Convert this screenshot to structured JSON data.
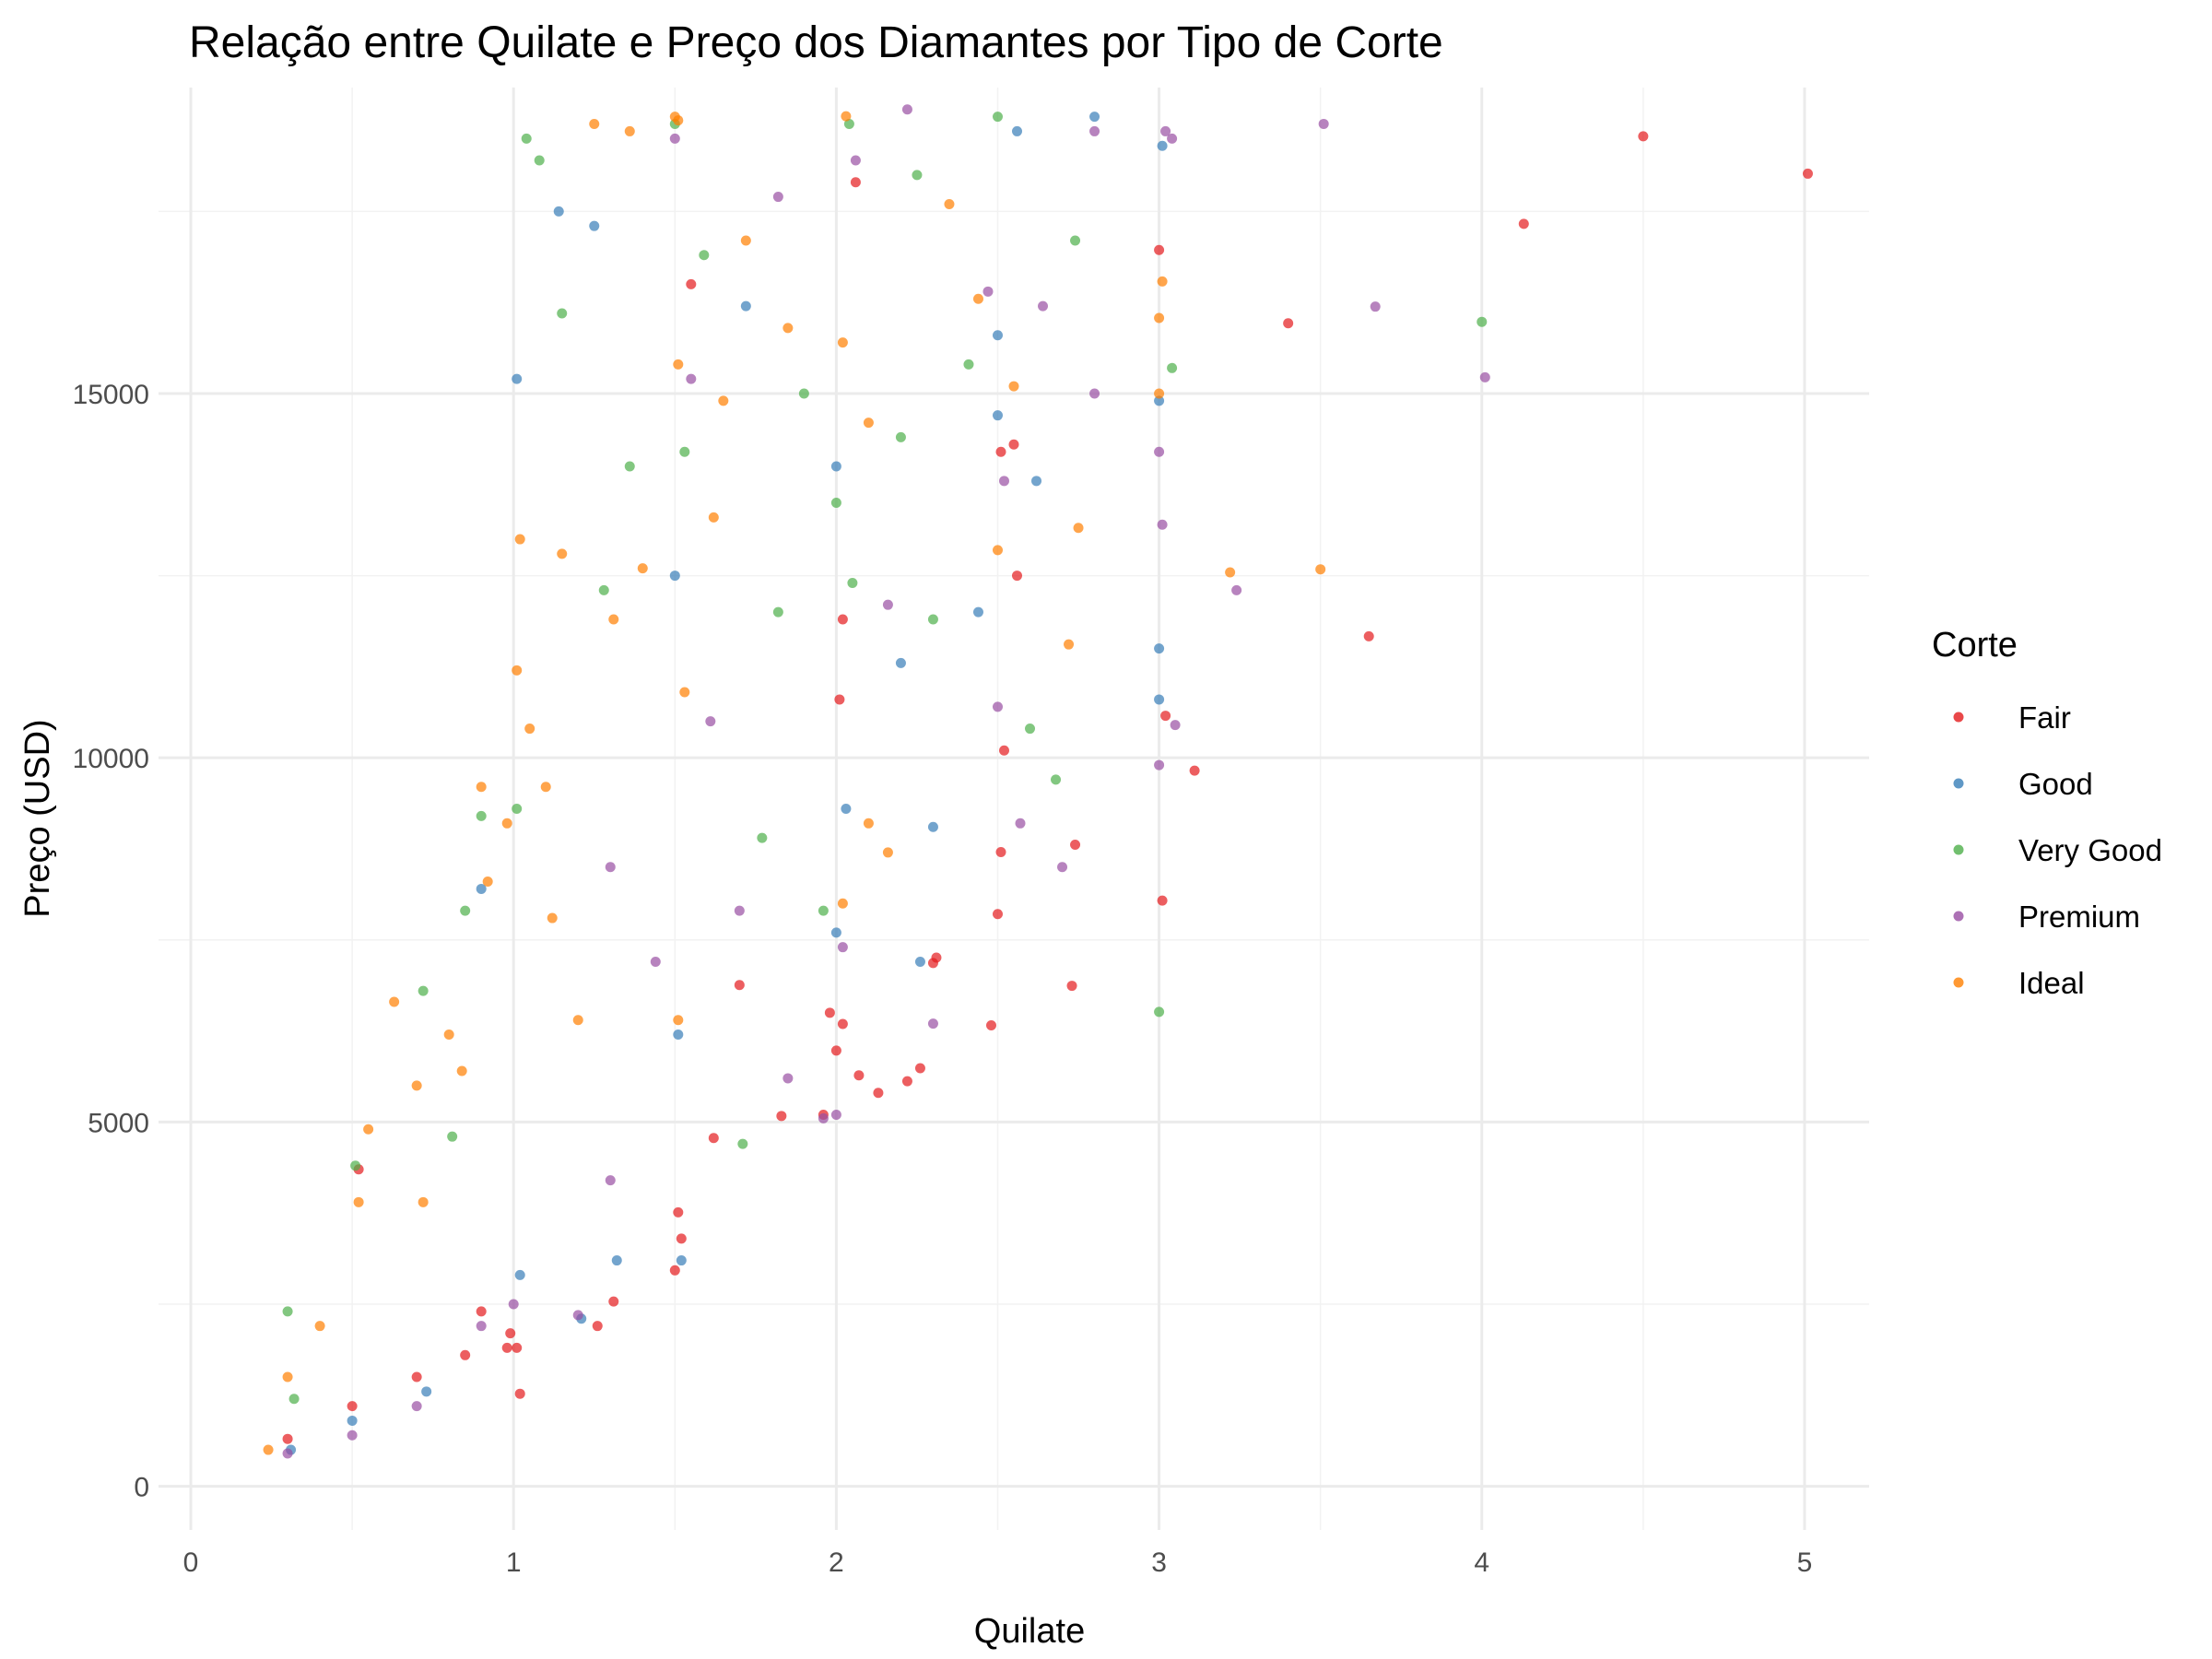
{
  "chart_data": {
    "type": "scatter",
    "title": "Relação entre Quilate e Preço dos Diamantes por Tipo de Corte",
    "xlabel": "Quilate",
    "ylabel": "Preço (USD)",
    "xlim": [
      -0.1,
      5.2
    ],
    "ylim": [
      -600,
      19200
    ],
    "x_ticks": [
      0,
      1,
      2,
      3,
      4,
      5
    ],
    "x_tick_labels": [
      "0",
      "1",
      "2",
      "3",
      "4",
      "5"
    ],
    "y_ticks": [
      0,
      5000,
      10000,
      15000
    ],
    "y_tick_labels": [
      "0",
      "5000",
      "10000",
      "15000"
    ],
    "grid": true,
    "legend": {
      "title": "Corte",
      "placement": "right"
    },
    "series": [
      {
        "name": "Fair",
        "color": "#E41A1C",
        "points": [
          [
            5.01,
            18018
          ],
          [
            4.5,
            18531
          ],
          [
            4.13,
            17329
          ],
          [
            3.4,
            15964
          ],
          [
            3.65,
            11668
          ],
          [
            3.11,
            9823
          ],
          [
            3.01,
            8040
          ],
          [
            3.02,
            10577
          ],
          [
            3.0,
            16970
          ],
          [
            2.74,
            8807
          ],
          [
            2.73,
            6870
          ],
          [
            2.5,
            7854
          ],
          [
            2.51,
            8705
          ],
          [
            2.48,
            6327
          ],
          [
            2.31,
            7257
          ],
          [
            2.3,
            7182
          ],
          [
            2.26,
            5739
          ],
          [
            2.22,
            5560
          ],
          [
            2.13,
            5400
          ],
          [
            2.07,
            5640
          ],
          [
            2.02,
            6346
          ],
          [
            2.0,
            5980
          ],
          [
            1.98,
            6500
          ],
          [
            1.96,
            5100
          ],
          [
            1.83,
            5083
          ],
          [
            1.7,
            6880
          ],
          [
            1.62,
            4780
          ],
          [
            1.52,
            3400
          ],
          [
            1.5,
            2964
          ],
          [
            1.51,
            3760
          ],
          [
            1.31,
            2536
          ],
          [
            1.26,
            2200
          ],
          [
            1.01,
            1900
          ],
          [
            1.02,
            1270
          ],
          [
            0.99,
            2100
          ],
          [
            0.98,
            1900
          ],
          [
            0.9,
            2400
          ],
          [
            0.85,
            1800
          ],
          [
            0.7,
            1500
          ],
          [
            0.5,
            1100
          ],
          [
            0.52,
            4350
          ],
          [
            0.3,
            650
          ],
          [
            2.02,
            11900
          ],
          [
            2.51,
            14200
          ],
          [
            2.56,
            12500
          ],
          [
            2.06,
            17900
          ],
          [
            1.55,
            16500
          ],
          [
            2.01,
            10800
          ],
          [
            2.52,
            10100
          ],
          [
            2.55,
            14300
          ]
        ]
      },
      {
        "name": "Good",
        "color": "#377EB8",
        "points": [
          [
            2.8,
            18800
          ],
          [
            3.01,
            18400
          ],
          [
            3.0,
            14900
          ],
          [
            3.0,
            11500
          ],
          [
            3.0,
            10800
          ],
          [
            2.5,
            14700
          ],
          [
            2.62,
            13800
          ],
          [
            2.3,
            9050
          ],
          [
            2.0,
            14000
          ],
          [
            1.5,
            12500
          ],
          [
            1.01,
            15200
          ],
          [
            1.14,
            17500
          ],
          [
            1.25,
            17300
          ],
          [
            2.2,
            11300
          ],
          [
            2.03,
            9300
          ],
          [
            2.56,
            18600
          ],
          [
            1.72,
            16200
          ],
          [
            1.51,
            6200
          ],
          [
            1.52,
            3100
          ],
          [
            1.32,
            3100
          ],
          [
            1.21,
            2300
          ],
          [
            1.02,
            2900
          ],
          [
            0.9,
            8200
          ],
          [
            0.73,
            1300
          ],
          [
            0.5,
            900
          ],
          [
            0.31,
            500
          ],
          [
            2.5,
            15800
          ],
          [
            2.44,
            12000
          ],
          [
            2.26,
            7200
          ],
          [
            2.0,
            7600
          ]
        ]
      },
      {
        "name": "Very Good",
        "color": "#4DAF4A",
        "points": [
          [
            4.0,
            15984
          ],
          [
            3.04,
            15350
          ],
          [
            3.0,
            6512
          ],
          [
            2.74,
            17100
          ],
          [
            2.68,
            9700
          ],
          [
            2.6,
            10400
          ],
          [
            2.04,
            18700
          ],
          [
            2.3,
            11900
          ],
          [
            2.25,
            18000
          ],
          [
            1.04,
            18500
          ],
          [
            1.08,
            18200
          ],
          [
            1.5,
            18700
          ],
          [
            1.53,
            14200
          ],
          [
            2.0,
            13500
          ],
          [
            1.71,
            4700
          ],
          [
            1.01,
            9300
          ],
          [
            0.9,
            9200
          ],
          [
            0.85,
            7900
          ],
          [
            0.72,
            6800
          ],
          [
            0.51,
            4400
          ],
          [
            0.3,
            2400
          ],
          [
            0.32,
            1200
          ],
          [
            1.28,
            12300
          ],
          [
            1.82,
            12000
          ],
          [
            2.41,
            15400
          ],
          [
            2.5,
            18800
          ],
          [
            2.05,
            12400
          ],
          [
            1.59,
            16900
          ],
          [
            1.77,
            8900
          ],
          [
            1.96,
            7900
          ],
          [
            1.36,
            14000
          ],
          [
            1.9,
            15000
          ],
          [
            2.2,
            14400
          ],
          [
            1.15,
            16100
          ],
          [
            0.81,
            4800
          ]
        ]
      },
      {
        "name": "Premium",
        "color": "#984EA3",
        "points": [
          [
            3.51,
            18701
          ],
          [
            3.67,
            16193
          ],
          [
            4.01,
            15223
          ],
          [
            3.24,
            12300
          ],
          [
            3.05,
            10450
          ],
          [
            3.0,
            9900
          ],
          [
            3.01,
            13200
          ],
          [
            3.0,
            14200
          ],
          [
            2.8,
            15000
          ],
          [
            2.7,
            8500
          ],
          [
            2.5,
            10700
          ],
          [
            2.57,
            9100
          ],
          [
            2.3,
            6350
          ],
          [
            2.02,
            7400
          ],
          [
            1.96,
            5050
          ],
          [
            2.0,
            5100
          ],
          [
            1.85,
            5600
          ],
          [
            1.7,
            7900
          ],
          [
            1.3,
            4200
          ],
          [
            1.2,
            2350
          ],
          [
            1.0,
            2500
          ],
          [
            0.9,
            2200
          ],
          [
            0.7,
            1100
          ],
          [
            0.5,
            700
          ],
          [
            0.3,
            450
          ],
          [
            1.3,
            8500
          ],
          [
            1.55,
            15200
          ],
          [
            2.06,
            18200
          ],
          [
            2.52,
            13800
          ],
          [
            2.8,
            18600
          ],
          [
            3.02,
            18600
          ],
          [
            3.04,
            18500
          ],
          [
            1.5,
            18500
          ],
          [
            2.22,
            18900
          ],
          [
            2.47,
            16400
          ],
          [
            2.64,
            16200
          ],
          [
            1.82,
            17700
          ],
          [
            2.16,
            12100
          ],
          [
            1.61,
            10500
          ],
          [
            1.44,
            7200
          ]
        ]
      },
      {
        "name": "Ideal",
        "color": "#FF7F00",
        "points": [
          [
            3.5,
            12587
          ],
          [
            3.22,
            12545
          ],
          [
            3.01,
            16538
          ],
          [
            3.0,
            16037
          ],
          [
            3.0,
            15000
          ],
          [
            2.75,
            13156
          ],
          [
            2.72,
            11556
          ],
          [
            2.5,
            12850
          ],
          [
            2.55,
            15100
          ],
          [
            2.03,
            18806
          ],
          [
            1.25,
            18700
          ],
          [
            1.36,
            18600
          ],
          [
            1.51,
            18750
          ],
          [
            1.5,
            18800
          ],
          [
            2.02,
            8000
          ],
          [
            2.1,
            9100
          ],
          [
            2.16,
            8700
          ],
          [
            1.51,
            6400
          ],
          [
            1.51,
            15400
          ],
          [
            1.02,
            13000
          ],
          [
            1.1,
            9600
          ],
          [
            1.01,
            11200
          ],
          [
            0.9,
            9600
          ],
          [
            0.8,
            6200
          ],
          [
            0.7,
            5500
          ],
          [
            0.63,
            6650
          ],
          [
            0.55,
            4900
          ],
          [
            0.52,
            3900
          ],
          [
            0.4,
            2200
          ],
          [
            0.3,
            1500
          ],
          [
            0.24,
            500
          ],
          [
            1.2,
            6400
          ],
          [
            1.12,
            7800
          ],
          [
            0.98,
            9100
          ],
          [
            1.4,
            12600
          ],
          [
            1.72,
            17100
          ],
          [
            2.35,
            17600
          ],
          [
            2.44,
            16300
          ],
          [
            2.02,
            15700
          ],
          [
            1.85,
            15900
          ],
          [
            1.62,
            13300
          ],
          [
            1.31,
            11900
          ],
          [
            1.15,
            12800
          ],
          [
            0.72,
            3900
          ],
          [
            0.84,
            5700
          ],
          [
            0.92,
            8300
          ],
          [
            1.05,
            10400
          ],
          [
            1.53,
            10900
          ],
          [
            1.65,
            14900
          ],
          [
            2.1,
            14600
          ]
        ]
      }
    ]
  }
}
